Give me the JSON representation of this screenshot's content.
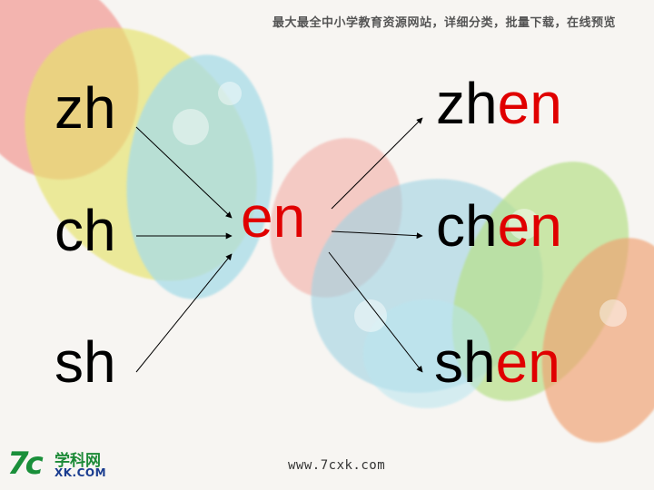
{
  "header": {
    "note": "最大最全中小学教育资源网站，详细分类，批量下载，在线预览"
  },
  "initials": [
    {
      "text": "zh"
    },
    {
      "text": "ch"
    },
    {
      "text": "sh"
    }
  ],
  "final": {
    "text": "en"
  },
  "results": [
    {
      "initial": "zh",
      "final": "en"
    },
    {
      "initial": "ch",
      "final": "en"
    },
    {
      "initial": "sh",
      "final": "en"
    }
  ],
  "footer": {
    "url": "www.7cxk.com",
    "logo_mark": "7c",
    "logo_text": "学科网",
    "logo_sub": "XK.COM"
  },
  "colors": {
    "initial": "#000000",
    "final": "#e00000"
  }
}
